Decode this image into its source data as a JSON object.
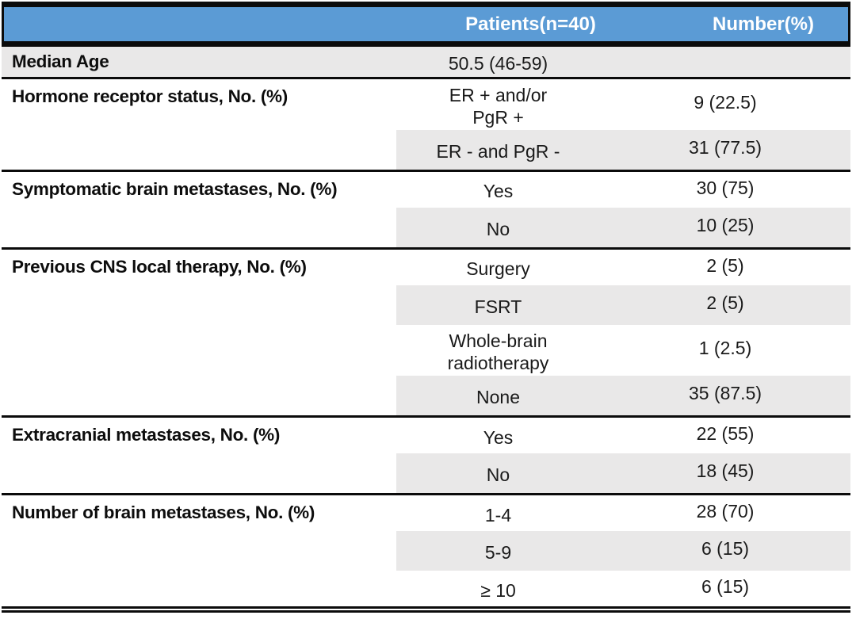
{
  "table": {
    "colors": {
      "header_bg": "#5b9bd5",
      "header_text": "#ffffff",
      "stripe_bg": "#e9e8e8",
      "rule": "#0b0b0b"
    },
    "header": {
      "col2": "Patients(n=40)",
      "col3": "Number(%)"
    },
    "sections": [
      {
        "label": "Median Age",
        "rows": [
          {
            "category": "50.5 (46-59)",
            "value": ""
          }
        ]
      },
      {
        "label": "Hormone receptor status, No. (%)",
        "rows": [
          {
            "category": "ER + and/or\nPgR +",
            "value": "9 (22.5)"
          },
          {
            "category": "ER - and PgR -",
            "value": "31 (77.5)"
          }
        ]
      },
      {
        "label": "Symptomatic brain metastases, No. (%)",
        "rows": [
          {
            "category": "Yes",
            "value": "30 (75)"
          },
          {
            "category": "No",
            "value": "10 (25)"
          }
        ]
      },
      {
        "label": "Previous CNS local therapy, No. (%)",
        "rows": [
          {
            "category": "Surgery",
            "value": "2 (5)"
          },
          {
            "category": "FSRT",
            "value": "2 (5)"
          },
          {
            "category": "Whole-brain\nradiotherapy",
            "value": "1 (2.5)"
          },
          {
            "category": "None",
            "value": "35 (87.5)"
          }
        ]
      },
      {
        "label": "Extracranial metastases, No. (%)",
        "rows": [
          {
            "category": "Yes",
            "value": "22 (55)"
          },
          {
            "category": "No",
            "value": "18 (45)"
          }
        ]
      },
      {
        "label": "Number of brain metastases, No. (%)",
        "rows": [
          {
            "category": "1-4",
            "value": "28 (70)"
          },
          {
            "category": "5-9",
            "value": "6 (15)"
          },
          {
            "category": "≥ 10",
            "value": "6 (15)"
          }
        ]
      }
    ]
  }
}
